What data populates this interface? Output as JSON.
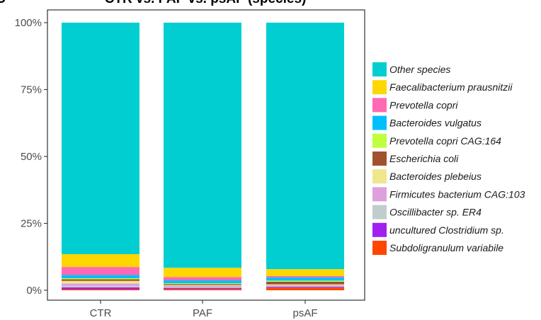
{
  "chart_data": {
    "type": "bar",
    "stacked": true,
    "title": "CTR vs. PAF vs. psAF (species)",
    "panel_label": "C",
    "categories": [
      "CTR",
      "PAF",
      "psAF"
    ],
    "ylim": [
      0,
      100
    ],
    "y_ticks": [
      {
        "value": 0,
        "label": "0%"
      },
      {
        "value": 25,
        "label": "25%"
      },
      {
        "value": 50,
        "label": "50%"
      },
      {
        "value": 75,
        "label": "75%"
      },
      {
        "value": 100,
        "label": "100%"
      }
    ],
    "grid": false,
    "legend_position": "right",
    "series": [
      {
        "name": "Subdoligranulum variabile",
        "color": "#FF4500",
        "values": [
          0.4,
          0.5,
          1.0
        ]
      },
      {
        "name": "uncultured Clostridium sp.",
        "color": "#A020F0",
        "values": [
          0.7,
          0.4,
          0.3
        ]
      },
      {
        "name": "Oscillibacter sp. ER4",
        "color": "#C1CDCD",
        "values": [
          0.5,
          0.4,
          0.3
        ]
      },
      {
        "name": "Firmicutes bacterium CAG:103",
        "color": "#DDA0DD",
        "values": [
          0.9,
          0.3,
          0.3
        ]
      },
      {
        "name": "Bacteroides plebeius",
        "color": "#F0E68C",
        "values": [
          1.0,
          0.3,
          0.3
        ]
      },
      {
        "name": "Escherichia coli",
        "color": "#A0522D",
        "values": [
          0.6,
          0.4,
          1.0
        ]
      },
      {
        "name": "Prevotella copri CAG:164",
        "color": "#C0FF3E",
        "values": [
          0.4,
          0.3,
          0.4
        ]
      },
      {
        "name": "Bacteroides vulgatus",
        "color": "#00BFFF",
        "values": [
          1.2,
          1.1,
          1.2
        ]
      },
      {
        "name": "Prevotella copri",
        "color": "#FF69B4",
        "values": [
          3.0,
          1.2,
          0.5
        ]
      },
      {
        "name": "Faecalibacterium prausnitzii",
        "color": "#FFD700",
        "values": [
          4.8,
          3.5,
          2.6
        ]
      },
      {
        "name": "Other species",
        "color": "#00CED1",
        "values": [
          86.5,
          91.6,
          92.1
        ]
      }
    ],
    "legend_order": [
      "Other species",
      "Faecalibacterium prausnitzii",
      "Prevotella copri",
      "Bacteroides vulgatus",
      "Prevotella copri CAG:164",
      "Escherichia coli",
      "Bacteroides plebeius",
      "Firmicutes bacterium CAG:103",
      "Oscillibacter sp. ER4",
      "uncultured Clostridium sp.",
      "Subdoligranulum variabile"
    ]
  }
}
